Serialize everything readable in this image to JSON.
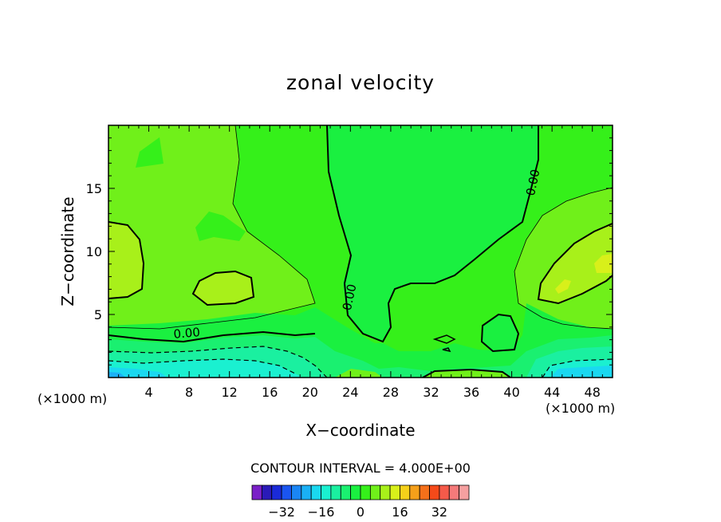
{
  "chart_data": {
    "type": "heatmap",
    "subtype": "filled-contour",
    "title": "zonal velocity",
    "xlabel": "X−coordinate",
    "ylabel": "Z−coordinate",
    "x_unit_left": "(×1000 m)",
    "x_unit_right": "(×1000 m)",
    "xlim": [
      0,
      50
    ],
    "ylim": [
      0,
      20
    ],
    "x_ticks": [
      4,
      8,
      12,
      16,
      20,
      24,
      28,
      32,
      36,
      40,
      44,
      48
    ],
    "x_tick_labels": [
      "4",
      "8",
      "12",
      "16",
      "20",
      "24",
      "28",
      "32",
      "36",
      "40",
      "44",
      "48"
    ],
    "y_ticks": [
      5,
      10,
      15
    ],
    "y_tick_labels": [
      "5",
      "10",
      "15"
    ],
    "contour_labels": [
      {
        "text": "0.00",
        "x": 7.8,
        "y": 3.2
      },
      {
        "text": "0.00",
        "x": 24.3,
        "y": 6.3
      },
      {
        "text": "0.00",
        "x": 42.5,
        "y": 15.4
      }
    ],
    "contour_interval_text": "CONTOUR INTERVAL = 4.000E+00",
    "colorbar": {
      "colors": [
        "#7a1fc8",
        "#2a1ab8",
        "#1a2ad8",
        "#1a55f0",
        "#1a85f5",
        "#1ab0f5",
        "#1ad8f0",
        "#1af0d0",
        "#1af0a0",
        "#1af070",
        "#1af040",
        "#35f01a",
        "#70f01a",
        "#a8f01a",
        "#d8f01a",
        "#f5d01a",
        "#f5a01a",
        "#f5701a",
        "#f54a1a",
        "#f55a4a",
        "#f57a7a",
        "#f5a0a0"
      ],
      "tick_labels": [
        "−32",
        "−16",
        "0",
        "16",
        "32"
      ],
      "tick_values": [
        -32,
        -16,
        0,
        16,
        32
      ]
    }
  }
}
